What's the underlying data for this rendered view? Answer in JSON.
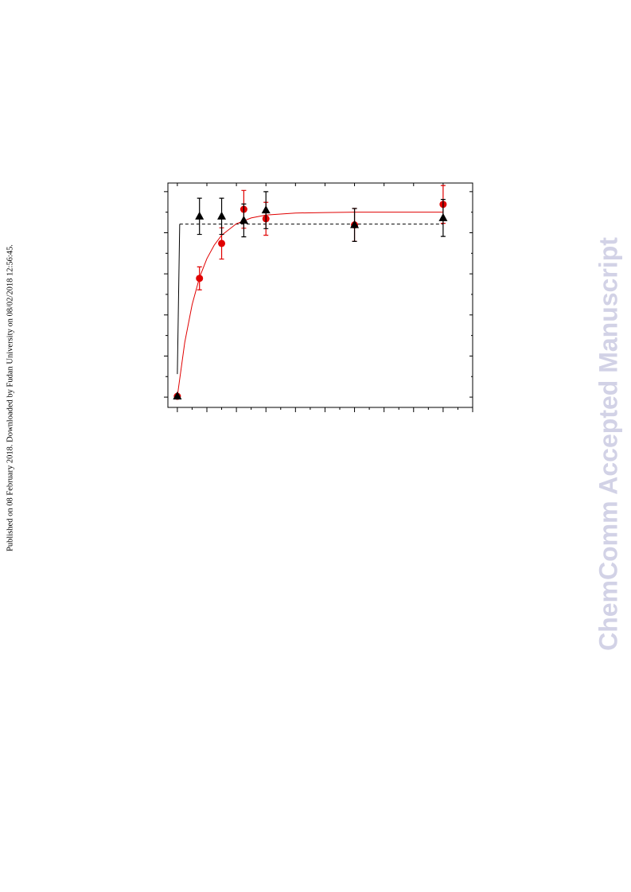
{
  "side_note": "Published on 08 February 2018. Downloaded by Fudan University on 08/02/2018 12:56:45.",
  "watermark": "ChemComm Accepted Manuscript",
  "chart_data": {
    "type": "scatter",
    "xlim": [
      -0.32,
      10.0
    ],
    "xticks": [
      0,
      1,
      2,
      3,
      4,
      5,
      6,
      7,
      8,
      9,
      10
    ],
    "ylim": [
      -0.25,
      5.21
    ],
    "yticks": [
      0,
      1,
      2,
      3,
      4,
      5
    ],
    "series": [
      {
        "color": "#000000",
        "style": "solid",
        "x": [
          0,
          0.08
        ],
        "values": [
          0.56,
          4.21
        ]
      },
      {
        "color": "#000000",
        "style": "dashed",
        "x": [
          0.08,
          9
        ],
        "values": [
          4.21,
          4.21
        ]
      },
      {
        "color": "#e00000",
        "style": "solid",
        "x": [
          0,
          0.25,
          0.5,
          0.75,
          1,
          1.25,
          1.5,
          2,
          2.5,
          3,
          4,
          5,
          6,
          7,
          8,
          9
        ],
        "values": [
          0.02,
          1.33,
          2.25,
          2.91,
          3.37,
          3.7,
          3.94,
          4.22,
          4.36,
          4.43,
          4.48,
          4.49,
          4.5,
          4.5,
          4.5,
          4.5
        ]
      },
      {
        "color": "#e00000",
        "marker": "circle",
        "x": [
          0,
          0.75,
          1.5,
          2.25,
          3,
          6,
          9
        ],
        "values": [
          0.02,
          2.89,
          3.74,
          4.57,
          4.34,
          4.19,
          4.69
        ],
        "errors": [
          0,
          0.28,
          0.38,
          0.46,
          0.4,
          0.4,
          0.46
        ]
      },
      {
        "color": "#000000",
        "marker": "triangle",
        "x": [
          0,
          0.75,
          1.5,
          2.25,
          3,
          6,
          9
        ],
        "values": [
          0.02,
          4.4,
          4.4,
          4.3,
          4.55,
          4.19,
          4.36
        ],
        "errors": [
          0,
          0.44,
          0.44,
          0.4,
          0.45,
          0.4,
          0.45
        ]
      }
    ]
  }
}
